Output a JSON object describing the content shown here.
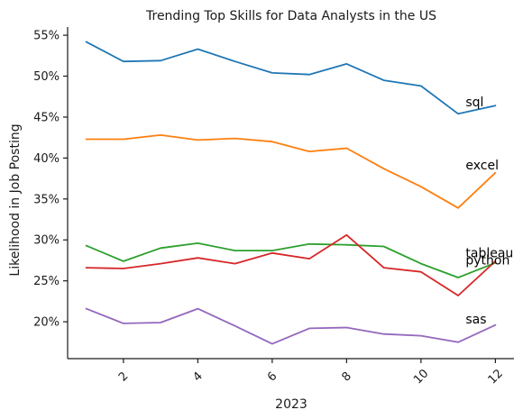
{
  "chart_data": {
    "type": "line",
    "title": "Trending Top Skills for Data Analysts in the US",
    "xlabel": "2023",
    "ylabel": "Likelihood in Job Posting",
    "x": [
      1,
      2,
      3,
      4,
      5,
      6,
      7,
      8,
      9,
      10,
      11,
      12
    ],
    "xlim": [
      0.5,
      12.5
    ],
    "ylim": [
      15.5,
      56.0
    ],
    "x_ticks": [
      2,
      4,
      6,
      8,
      10,
      12
    ],
    "y_ticks": [
      20,
      25,
      30,
      35,
      40,
      45,
      50,
      55
    ],
    "y_tick_labels": [
      "20%",
      "25%",
      "30%",
      "35%",
      "40%",
      "45%",
      "50%",
      "55%"
    ],
    "x_tick_labels": [
      "2",
      "4",
      "6",
      "8",
      "10",
      "12"
    ],
    "grid": false,
    "legend": "inline labels at line ends",
    "series": [
      {
        "name": "sql",
        "color": "#1f77b4",
        "values": [
          54.2,
          51.8,
          51.9,
          53.3,
          51.8,
          50.4,
          50.2,
          51.5,
          49.5,
          48.8,
          45.4,
          46.4
        ]
      },
      {
        "name": "excel",
        "color": "#ff7f0e",
        "values": [
          42.3,
          42.3,
          42.8,
          42.2,
          42.4,
          42.0,
          40.8,
          41.2,
          38.7,
          36.5,
          33.9,
          38.2
        ]
      },
      {
        "name": "tableau",
        "color": "#2ca02c",
        "values": [
          29.3,
          27.4,
          29.0,
          29.6,
          28.7,
          28.7,
          29.5,
          29.4,
          29.2,
          27.1,
          25.4,
          27.2
        ]
      },
      {
        "name": "python",
        "color": "#d62728",
        "values": [
          26.6,
          26.5,
          27.1,
          27.8,
          27.1,
          28.4,
          27.7,
          30.6,
          26.6,
          26.1,
          23.2,
          27.4
        ]
      },
      {
        "name": "sas",
        "color": "#9467bd",
        "values": [
          21.6,
          19.8,
          19.9,
          21.6,
          19.5,
          17.3,
          19.2,
          19.3,
          18.5,
          18.3,
          17.5,
          19.6
        ]
      }
    ],
    "label_offsets": {
      "sql": 46.3,
      "excel": 38.6,
      "tableau": 27.9,
      "python": 27.0,
      "sas": 19.8
    }
  }
}
